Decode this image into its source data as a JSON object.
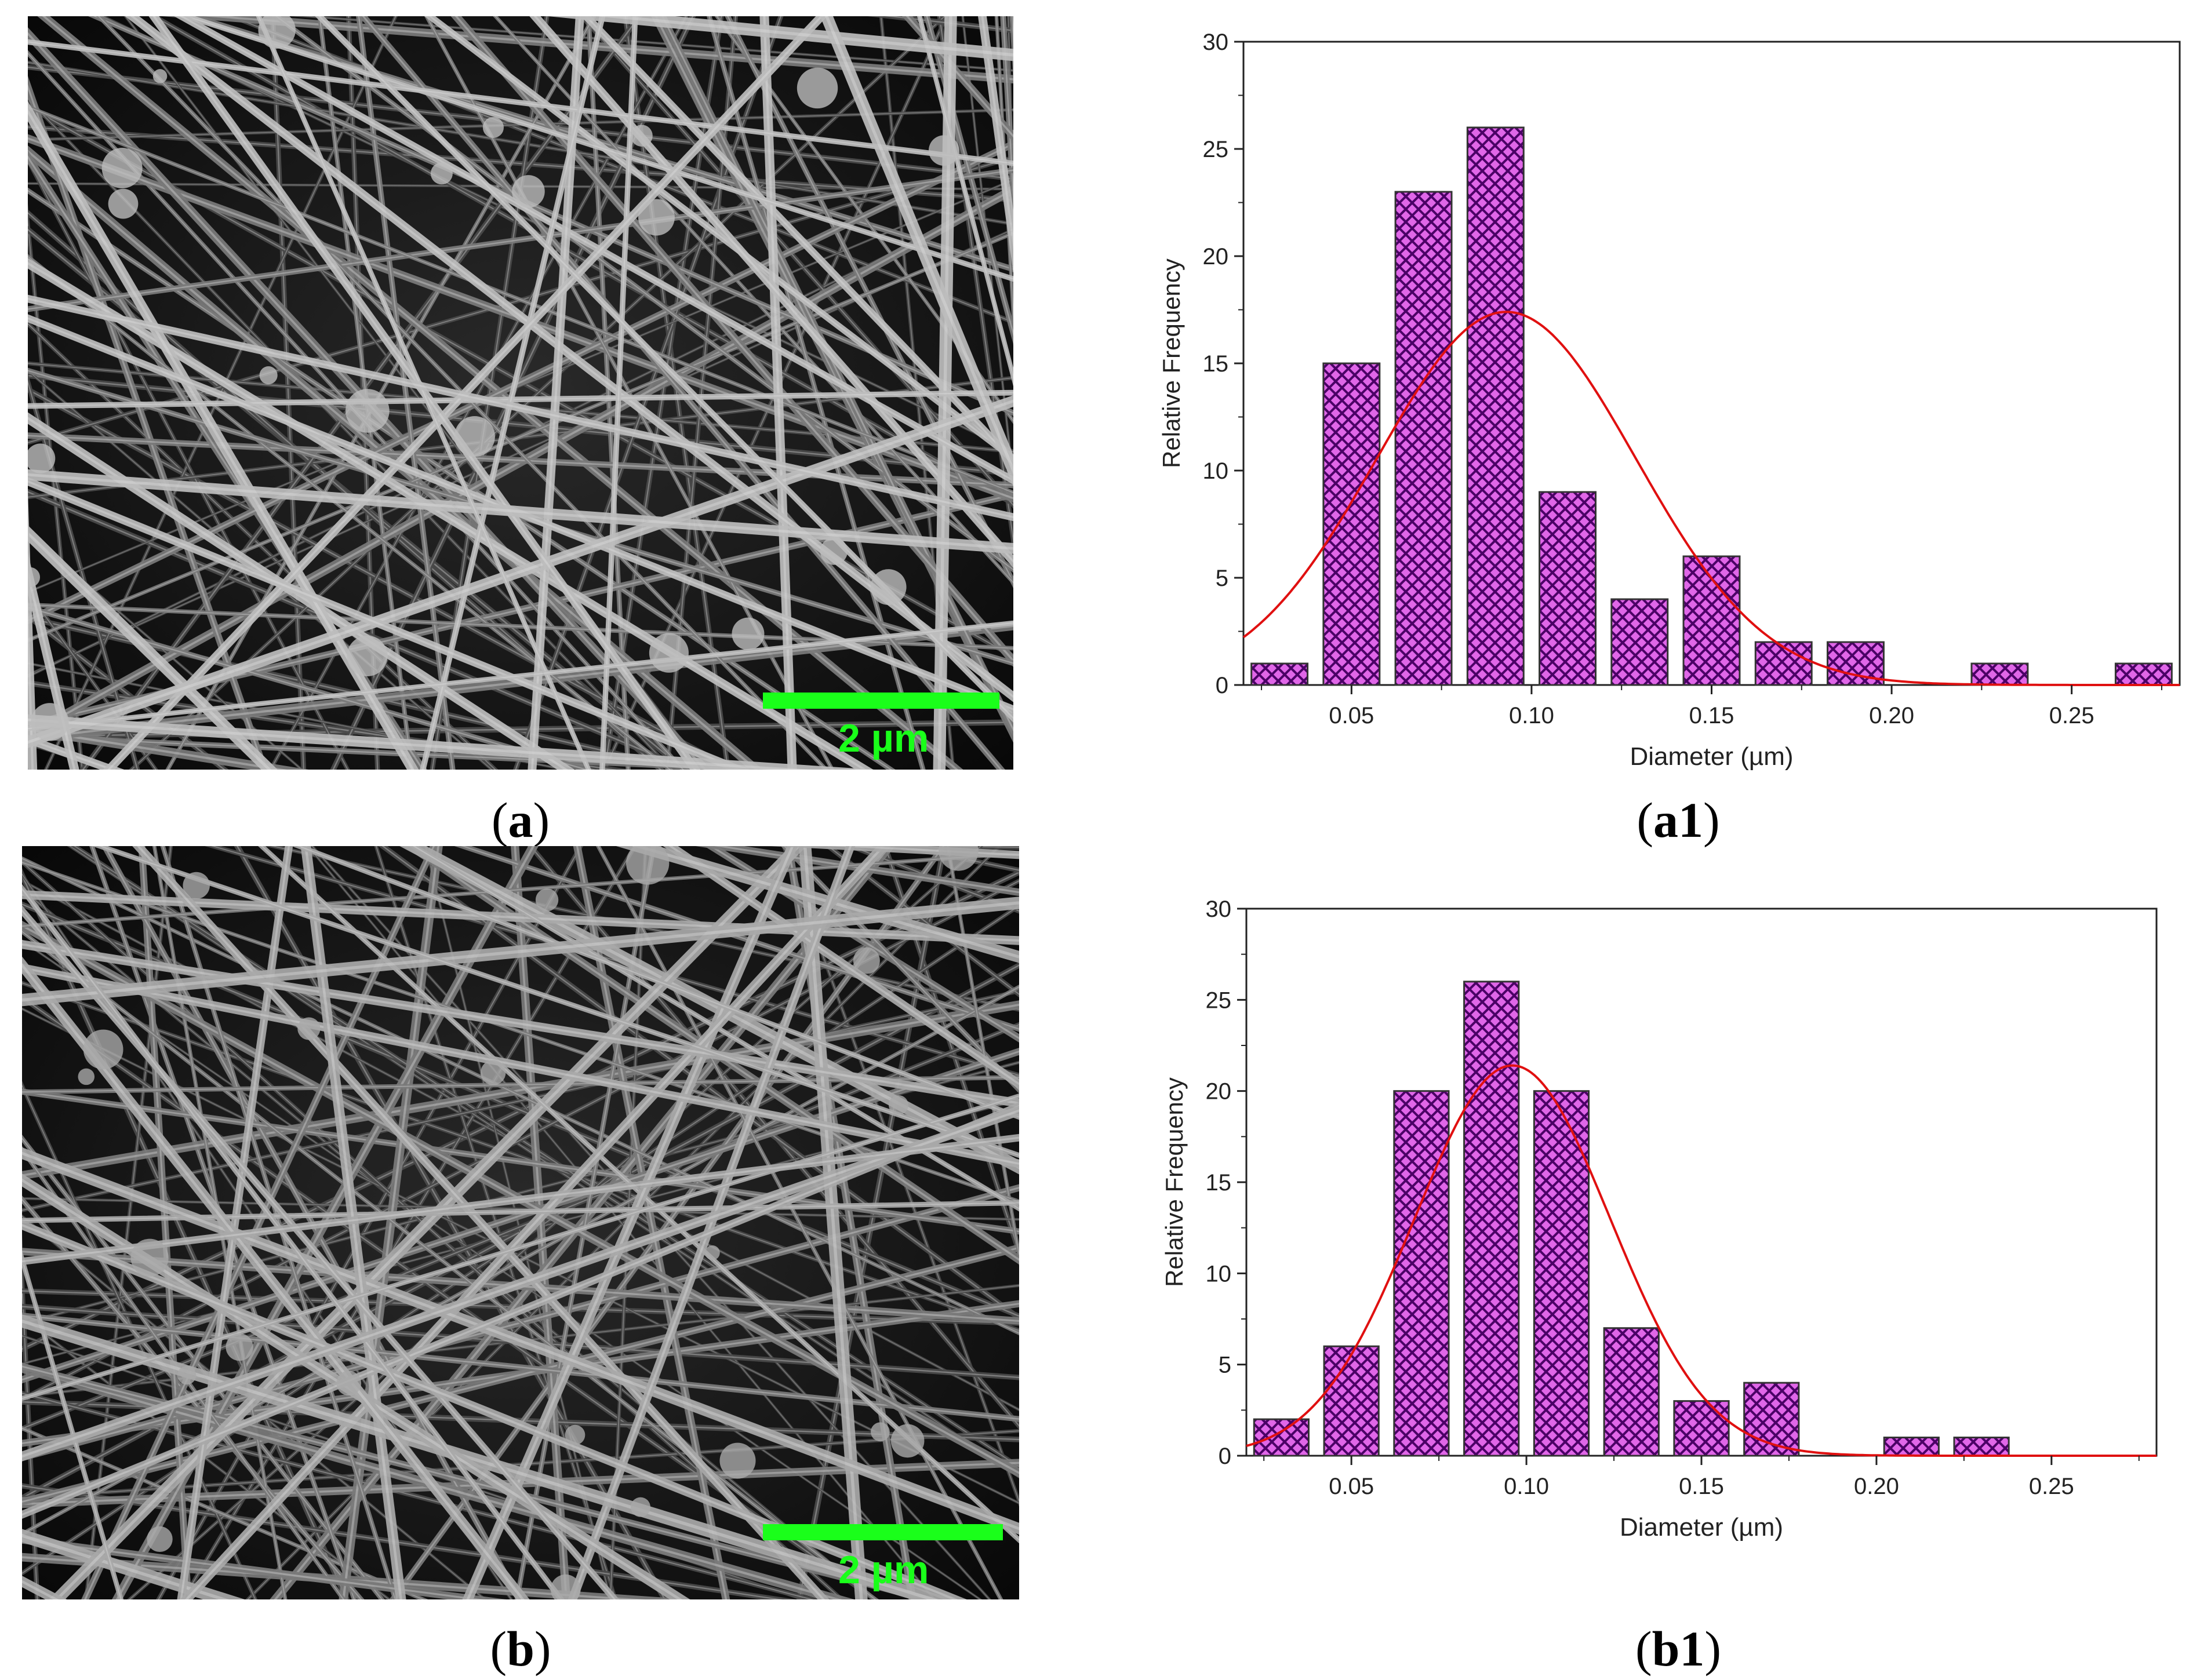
{
  "captions": {
    "a": "a",
    "a1": "a1",
    "b": "b",
    "b1": "b1"
  },
  "micrographs": {
    "a": {
      "scale_label": "2 µm",
      "scale_color": "#1aff1a"
    },
    "b": {
      "scale_label": "2 µm",
      "scale_color": "#1aff1a"
    }
  },
  "colors": {
    "bar_fill": "#e066e8",
    "bar_hatch": "#4b0066",
    "fit_line": "#e01010"
  },
  "chart_data": [
    {
      "id": "a1",
      "type": "bar",
      "xlabel": "Diameter (µm)",
      "ylabel": "Relative Frequency",
      "xlim": [
        0.02,
        0.28
      ],
      "ylim": [
        0,
        30
      ],
      "xticks": [
        "0.05",
        "0.10",
        "0.15",
        "0.20",
        "0.25"
      ],
      "xtick_values": [
        0.05,
        0.1,
        0.15,
        0.2,
        0.25
      ],
      "yticks": [
        "0",
        "5",
        "10",
        "15",
        "20",
        "25",
        "30"
      ],
      "bin_width": 0.02,
      "x": [
        0.03,
        0.05,
        0.07,
        0.09,
        0.11,
        0.13,
        0.15,
        0.17,
        0.19,
        0.23,
        0.27
      ],
      "values": [
        1,
        15,
        23,
        26,
        9,
        4,
        6,
        2,
        2,
        1,
        1
      ],
      "fit": {
        "type": "gaussian",
        "mean": 0.093,
        "sd": 0.036,
        "peak": 17.4
      },
      "grid": false
    },
    {
      "id": "b1",
      "type": "bar",
      "xlabel": "Diameter (µm)",
      "ylabel": "Relative Frequency",
      "xlim": [
        0.02,
        0.28
      ],
      "ylim": [
        0,
        30
      ],
      "xticks": [
        "0.05",
        "0.10",
        "0.15",
        "0.20",
        "0.25"
      ],
      "xtick_values": [
        0.05,
        0.1,
        0.15,
        0.2,
        0.25
      ],
      "yticks": [
        "0",
        "5",
        "10",
        "15",
        "20",
        "25",
        "30"
      ],
      "bin_width": 0.02,
      "x": [
        0.03,
        0.05,
        0.07,
        0.09,
        0.11,
        0.13,
        0.15,
        0.17,
        0.21,
        0.23
      ],
      "values": [
        2,
        6,
        20,
        26,
        20,
        7,
        3,
        4,
        1,
        1
      ],
      "fit": {
        "type": "gaussian",
        "mean": 0.096,
        "sd": 0.028,
        "peak": 21.4
      },
      "grid": false
    }
  ]
}
